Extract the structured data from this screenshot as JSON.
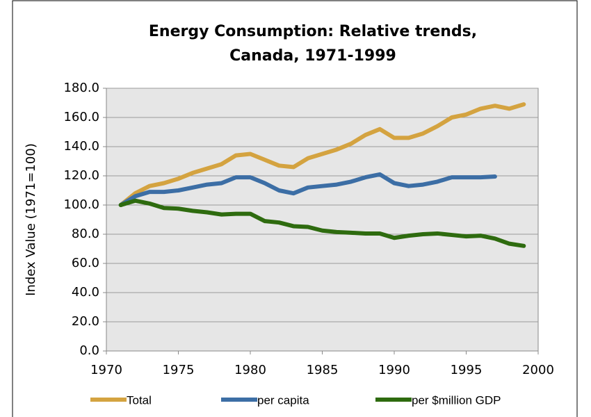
{
  "chart_data": {
    "type": "line",
    "title": "Energy Consumption: Relative trends, Canada, 1971-1999",
    "y_label": "Index Value (1971=100)",
    "x": [
      1971,
      1972,
      1973,
      1974,
      1975,
      1976,
      1977,
      1978,
      1979,
      1980,
      1981,
      1982,
      1983,
      1984,
      1985,
      1986,
      1987,
      1988,
      1989,
      1990,
      1991,
      1992,
      1993,
      1994,
      1995,
      1996,
      1997,
      1998,
      1999
    ],
    "series": [
      {
        "name": "Total",
        "color": "#d4a340",
        "values": [
          100,
          108,
          113,
          115,
          118,
          122,
          125,
          128,
          134,
          135,
          131,
          127,
          126,
          132,
          135,
          138,
          142,
          148,
          152,
          146,
          146,
          149,
          154,
          160,
          162,
          166,
          168,
          166,
          169
        ]
      },
      {
        "name": "per capita",
        "color": "#3c6ea5",
        "values": [
          100,
          106,
          109,
          109,
          110,
          112,
          114,
          115,
          119,
          119,
          115,
          110,
          108,
          112,
          113,
          114,
          116,
          119,
          121,
          115,
          113,
          114,
          116,
          119,
          119,
          119,
          119.5,
          null,
          null
        ]
      },
      {
        "name": "per $million GDP",
        "color": "#2e6b0f",
        "values": [
          100,
          103,
          101,
          98,
          97.5,
          96,
          95,
          93.5,
          94,
          94,
          89,
          88,
          85.5,
          85,
          82.5,
          81.5,
          81,
          80.5,
          80.5,
          77.5,
          79,
          80,
          80.5,
          79.5,
          78.5,
          79,
          77,
          73.5,
          72
        ]
      }
    ],
    "xlim": [
      1970,
      2000
    ],
    "xticks": [
      1970,
      1975,
      1980,
      1985,
      1990,
      1995,
      2000
    ],
    "ylim": [
      0,
      180
    ],
    "yticks": [
      {
        "value": 0,
        "label": "0.0"
      },
      {
        "value": 20,
        "label": "20.0"
      },
      {
        "value": 40,
        "label": "40.0"
      },
      {
        "value": 60,
        "label": "60.0"
      },
      {
        "value": 80,
        "label": "80.0"
      },
      {
        "value": 100,
        "label": "100.0"
      },
      {
        "value": 120,
        "label": "120.0"
      },
      {
        "value": 140,
        "label": "140.0"
      },
      {
        "value": 160,
        "label": "160.0"
      },
      {
        "value": 180,
        "label": "180.0"
      }
    ],
    "grid": true,
    "legend": "bottom"
  }
}
